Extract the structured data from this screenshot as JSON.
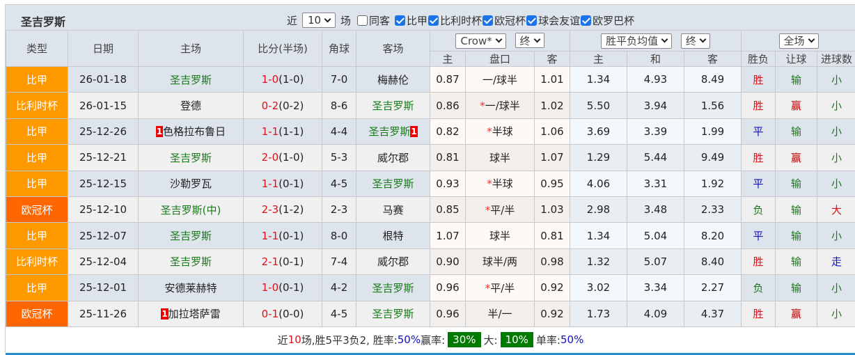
{
  "title": "圣吉罗斯",
  "filters": {
    "recent_label": "近",
    "recent_value": "10",
    "games_label": "场",
    "checkboxes": [
      {
        "label": "同客",
        "checked": false
      },
      {
        "label": "比甲",
        "checked": true
      },
      {
        "label": "比利时杯",
        "checked": true
      },
      {
        "label": "欧冠杯",
        "checked": true
      },
      {
        "label": "球会友谊",
        "checked": true
      },
      {
        "label": "欧罗巴杯",
        "checked": true
      }
    ]
  },
  "header": {
    "type": "类型",
    "date": "日期",
    "home": "主场",
    "score": "比分(半场)",
    "corner": "角球",
    "away": "客场",
    "ah_company": "Crow*",
    "ah_time": "终",
    "eu_type": "胜平负均值",
    "eu_time": "终",
    "scope": "全场",
    "sub": [
      "主",
      "盘口",
      "客",
      "主",
      "和",
      "客",
      "胜负",
      "让球",
      "进球数"
    ]
  },
  "colors": {
    "league": "#ff9900",
    "cup": "#ff6600",
    "win": "#e0101a",
    "draw": "#1010c0",
    "loss": "#187a18",
    "footer_box": "#007a00"
  },
  "rows": [
    {
      "type": "比甲",
      "type_color": "#ff9900",
      "date": "26-01-18",
      "home": "圣吉罗斯",
      "home_green": true,
      "home_rc": "",
      "score": "1-0",
      "half": "(1-0)",
      "corner": "7-0",
      "away": "梅赫伦",
      "away_green": false,
      "away_rc": "",
      "ah_h": "0.87",
      "ah_star": "",
      "ah_line": "一/球半",
      "ah_a": "1.01",
      "eu_h": "1.34",
      "eu_d": "4.93",
      "eu_a": "8.49",
      "res": "胜",
      "ah_res": "输",
      "ou": "小"
    },
    {
      "type": "比利时杯",
      "type_color": "#ff9900",
      "date": "26-01-15",
      "home": "登德",
      "home_green": false,
      "home_rc": "",
      "score": "0-2",
      "half": "(0-2)",
      "corner": "8-6",
      "away": "圣吉罗斯",
      "away_green": true,
      "away_rc": "",
      "ah_h": "0.86",
      "ah_star": "*",
      "ah_line": "一/球半",
      "ah_a": "1.02",
      "eu_h": "5.50",
      "eu_d": "3.94",
      "eu_a": "1.56",
      "res": "胜",
      "ah_res": "赢",
      "ou": "小"
    },
    {
      "type": "比甲",
      "type_color": "#ff9900",
      "date": "25-12-26",
      "home": "色格拉布鲁日",
      "home_green": false,
      "home_rc": "1",
      "score": "1-1",
      "half": "(1-1)",
      "corner": "4-4",
      "away": "圣吉罗斯",
      "away_green": true,
      "away_rc": "1",
      "ah_h": "0.82",
      "ah_star": "*",
      "ah_line": "半球",
      "ah_a": "1.06",
      "eu_h": "3.69",
      "eu_d": "3.39",
      "eu_a": "1.99",
      "res": "平",
      "ah_res": "输",
      "ou": "小"
    },
    {
      "type": "比甲",
      "type_color": "#ff9900",
      "date": "25-12-21",
      "home": "圣吉罗斯",
      "home_green": true,
      "home_rc": "",
      "score": "2-0",
      "half": "(1-0)",
      "corner": "5-3",
      "away": "威尔郡",
      "away_green": false,
      "away_rc": "",
      "ah_h": "0.81",
      "ah_star": "",
      "ah_line": "球半",
      "ah_a": "1.07",
      "eu_h": "1.29",
      "eu_d": "5.44",
      "eu_a": "9.49",
      "res": "胜",
      "ah_res": "赢",
      "ou": "小"
    },
    {
      "type": "比甲",
      "type_color": "#ff9900",
      "date": "25-12-15",
      "home": "沙勒罗瓦",
      "home_green": false,
      "home_rc": "",
      "score": "1-1",
      "half": "(0-1)",
      "corner": "4-5",
      "away": "圣吉罗斯",
      "away_green": true,
      "away_rc": "",
      "ah_h": "0.93",
      "ah_star": "*",
      "ah_line": "半球",
      "ah_a": "0.95",
      "eu_h": "4.06",
      "eu_d": "3.31",
      "eu_a": "1.92",
      "res": "平",
      "ah_res": "输",
      "ou": "小"
    },
    {
      "type": "欧冠杯",
      "type_color": "#ff6600",
      "date": "25-12-10",
      "home": "圣吉罗斯(中)",
      "home_green": true,
      "home_rc": "",
      "score": "2-3",
      "half": "(1-2)",
      "corner": "2-3",
      "away": "马赛",
      "away_green": false,
      "away_rc": "",
      "ah_h": "0.85",
      "ah_star": "*",
      "ah_line": "平/半",
      "ah_a": "1.03",
      "eu_h": "2.98",
      "eu_d": "3.48",
      "eu_a": "2.33",
      "res": "负",
      "ah_res": "输",
      "ou": "大"
    },
    {
      "type": "比甲",
      "type_color": "#ff9900",
      "date": "25-12-07",
      "home": "圣吉罗斯",
      "home_green": true,
      "home_rc": "",
      "score": "1-1",
      "half": "(0-1)",
      "corner": "8-0",
      "away": "根特",
      "away_green": false,
      "away_rc": "",
      "ah_h": "1.07",
      "ah_star": "",
      "ah_line": "球半",
      "ah_a": "0.81",
      "eu_h": "1.34",
      "eu_d": "5.04",
      "eu_a": "8.20",
      "res": "平",
      "ah_res": "输",
      "ou": "小"
    },
    {
      "type": "比利时杯",
      "type_color": "#ff9900",
      "date": "25-12-04",
      "home": "圣吉罗斯",
      "home_green": true,
      "home_rc": "",
      "score": "2-1",
      "half": "(0-1)",
      "corner": "7-4",
      "away": "威尔郡",
      "away_green": false,
      "away_rc": "",
      "ah_h": "0.90",
      "ah_star": "",
      "ah_line": "球半/两",
      "ah_a": "0.98",
      "eu_h": "1.32",
      "eu_d": "5.07",
      "eu_a": "8.40",
      "res": "胜",
      "ah_res": "输",
      "ou": "走"
    },
    {
      "type": "比甲",
      "type_color": "#ff9900",
      "date": "25-12-01",
      "home": "安德莱赫特",
      "home_green": false,
      "home_rc": "",
      "score": "1-0",
      "half": "(0-1)",
      "corner": "4-2",
      "away": "圣吉罗斯",
      "away_green": true,
      "away_rc": "",
      "ah_h": "0.96",
      "ah_star": "*",
      "ah_line": "平/半",
      "ah_a": "0.92",
      "eu_h": "3.02",
      "eu_d": "3.34",
      "eu_a": "2.27",
      "res": "负",
      "ah_res": "输",
      "ou": "小"
    },
    {
      "type": "欧冠杯",
      "type_color": "#ff6600",
      "date": "25-11-26",
      "home": "加拉塔萨雷",
      "home_green": false,
      "home_rc": "1",
      "score": "0-1",
      "half": "(0-0)",
      "corner": "4-5",
      "away": "圣吉罗斯",
      "away_green": true,
      "away_rc": "",
      "ah_h": "0.96",
      "ah_star": "",
      "ah_line": "半/一",
      "ah_a": "0.92",
      "eu_h": "1.73",
      "eu_d": "4.09",
      "eu_a": "4.37",
      "res": "胜",
      "ah_res": "赢",
      "ou": "小"
    }
  ],
  "footer": {
    "p1": "近",
    "n": "10",
    "p2": "场,胜5平3负2, 胜率:",
    "win_rate": "50%",
    "p3": " 赢率:",
    "ah_rate": "30%",
    "p4": " 大:",
    "over_rate": "10%",
    "p5": " 单率:",
    "odd_rate": "50%"
  }
}
